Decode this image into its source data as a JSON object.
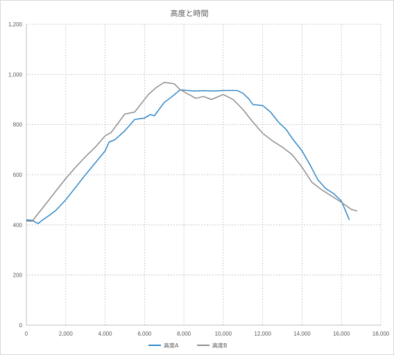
{
  "chart_data": {
    "type": "line",
    "title": "高度と時間",
    "xlabel": "",
    "ylabel": "",
    "xlim": [
      0,
      18000
    ],
    "ylim": [
      0,
      1200
    ],
    "x_ticks": [
      0,
      2000,
      4000,
      6000,
      8000,
      10000,
      12000,
      14000,
      16000,
      18000
    ],
    "x_tick_labels": [
      "0",
      "2,000",
      "4,000",
      "6,000",
      "8,000",
      "10,000",
      "12,000",
      "14,000",
      "16,000",
      "18,000"
    ],
    "y_ticks": [
      0,
      200,
      400,
      600,
      800,
      1000,
      1200
    ],
    "y_tick_labels": [
      "0",
      "200",
      "400",
      "600",
      "800",
      "1,000",
      "1,200"
    ],
    "grid": true,
    "legend_position": "bottom",
    "series": [
      {
        "name": "高度A",
        "color": "#2e86c8",
        "points": [
          [
            0,
            420
          ],
          [
            300,
            418
          ],
          [
            600,
            405
          ],
          [
            800,
            418
          ],
          [
            1200,
            440
          ],
          [
            1500,
            458
          ],
          [
            2000,
            500
          ],
          [
            3000,
            600
          ],
          [
            4000,
            695
          ],
          [
            4200,
            730
          ],
          [
            4500,
            740
          ],
          [
            5000,
            775
          ],
          [
            5500,
            820
          ],
          [
            6000,
            826
          ],
          [
            6300,
            840
          ],
          [
            6500,
            835
          ],
          [
            7000,
            888
          ],
          [
            7400,
            912
          ],
          [
            7800,
            938
          ],
          [
            8200,
            936
          ],
          [
            8500,
            934
          ],
          [
            9000,
            935
          ],
          [
            9500,
            934
          ],
          [
            10000,
            936
          ],
          [
            10700,
            936
          ],
          [
            11000,
            925
          ],
          [
            11300,
            902
          ],
          [
            11500,
            880
          ],
          [
            12000,
            876
          ],
          [
            12400,
            850
          ],
          [
            12800,
            810
          ],
          [
            13200,
            780
          ],
          [
            13500,
            745
          ],
          [
            14000,
            695
          ],
          [
            14400,
            640
          ],
          [
            14800,
            580
          ],
          [
            15200,
            545
          ],
          [
            15600,
            525
          ],
          [
            16000,
            495
          ],
          [
            16400,
            420
          ]
        ]
      },
      {
        "name": "高度B",
        "color": "#8c8c8c",
        "points": [
          [
            0,
            415
          ],
          [
            300,
            415
          ],
          [
            600,
            445
          ],
          [
            1000,
            485
          ],
          [
            1500,
            535
          ],
          [
            2000,
            585
          ],
          [
            2500,
            630
          ],
          [
            3000,
            672
          ],
          [
            3500,
            710
          ],
          [
            4000,
            755
          ],
          [
            4300,
            768
          ],
          [
            4700,
            810
          ],
          [
            5000,
            842
          ],
          [
            5500,
            850
          ],
          [
            5800,
            880
          ],
          [
            6200,
            920
          ],
          [
            6600,
            948
          ],
          [
            7000,
            968
          ],
          [
            7500,
            963
          ],
          [
            7800,
            940
          ],
          [
            8200,
            922
          ],
          [
            8600,
            905
          ],
          [
            9000,
            912
          ],
          [
            9400,
            900
          ],
          [
            10000,
            920
          ],
          [
            10500,
            900
          ],
          [
            11000,
            860
          ],
          [
            11500,
            810
          ],
          [
            12000,
            765
          ],
          [
            12500,
            735
          ],
          [
            13000,
            710
          ],
          [
            13500,
            680
          ],
          [
            14000,
            630
          ],
          [
            14500,
            570
          ],
          [
            15000,
            540
          ],
          [
            15500,
            515
          ],
          [
            16000,
            490
          ],
          [
            16500,
            462
          ],
          [
            16800,
            455
          ]
        ]
      }
    ]
  }
}
